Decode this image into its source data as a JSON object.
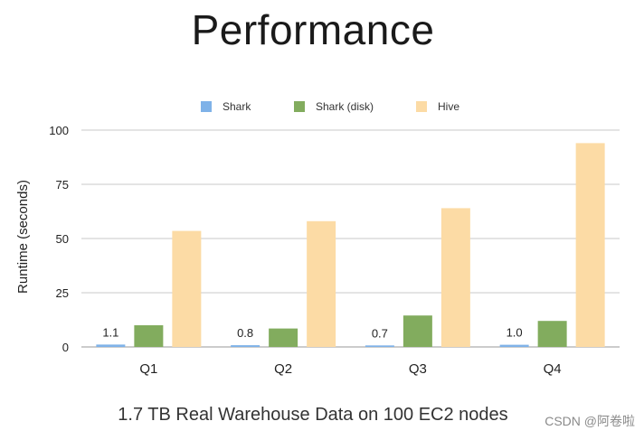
{
  "slide": {
    "title": "Performance",
    "caption": "1.7 TB Real Warehouse Data on 100 EC2 nodes",
    "watermark": "CSDN @阿卷啦"
  },
  "chart_data": {
    "type": "bar",
    "title": "",
    "xlabel": "",
    "ylabel": "Runtime (seconds)",
    "categories": [
      "Q1",
      "Q2",
      "Q3",
      "Q4"
    ],
    "ylim": [
      0,
      100
    ],
    "yticks": [
      0,
      25,
      50,
      75,
      100
    ],
    "grid": true,
    "legend_position": "top",
    "series": [
      {
        "name": "Shark",
        "color": "#7fb2e8",
        "values": [
          1.1,
          0.8,
          0.7,
          1.0
        ],
        "labels": [
          "1.1",
          "0.8",
          "0.7",
          "1.0"
        ]
      },
      {
        "name": "Shark (disk)",
        "color": "#82ac5e",
        "values": [
          10,
          8.5,
          14.5,
          12
        ]
      },
      {
        "name": "Hive",
        "color": "#fcdba5",
        "values": [
          53.5,
          58,
          64,
          94
        ]
      }
    ]
  }
}
